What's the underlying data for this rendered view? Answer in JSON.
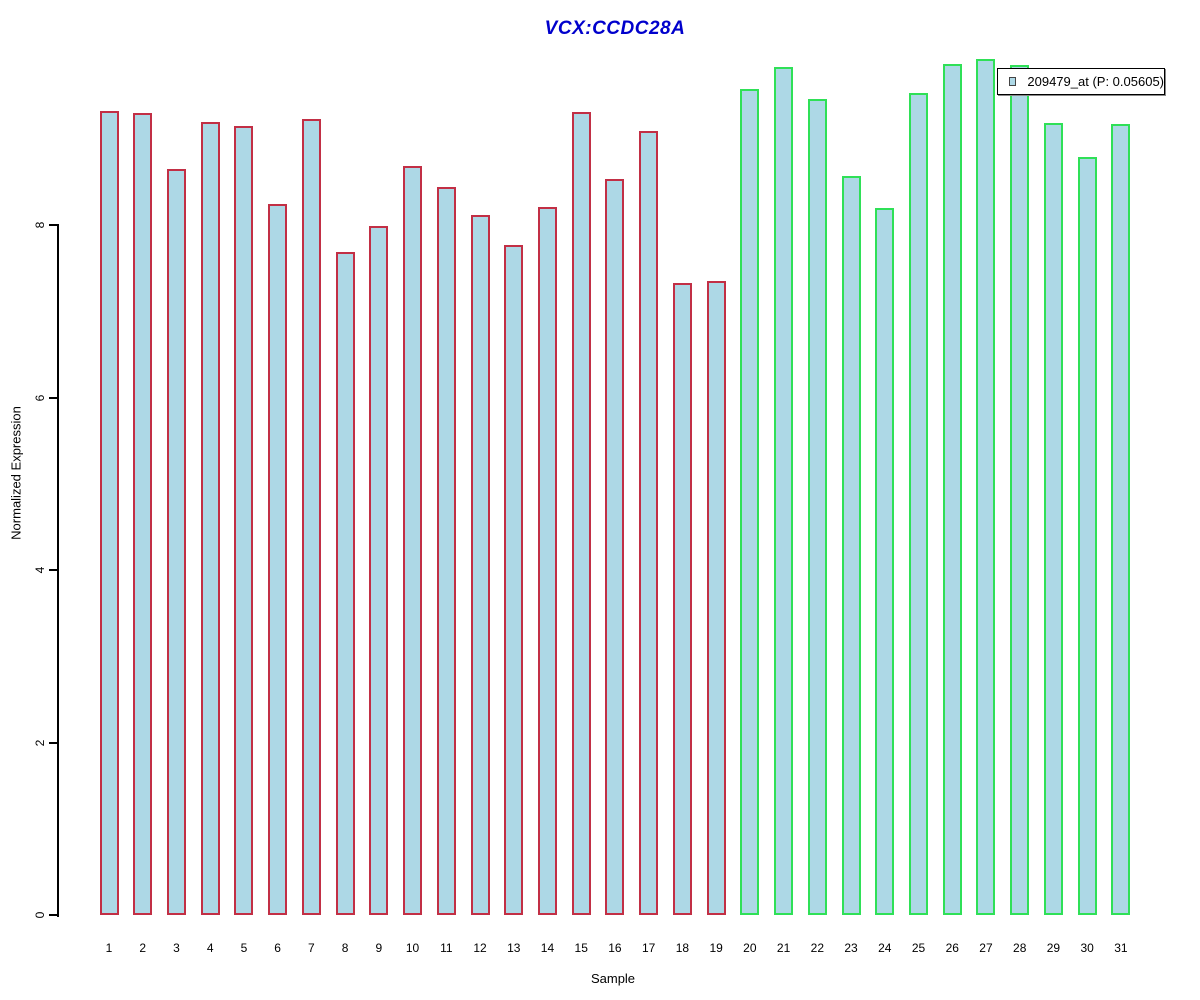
{
  "chart_data": {
    "type": "bar",
    "title": "VCX:CCDC28A",
    "xlabel": "Sample",
    "ylabel": "Normalized Expression",
    "ylim": [
      0,
      10
    ],
    "yticks": [
      0,
      2,
      4,
      6,
      8
    ],
    "grid": false,
    "legend_position": "top-right",
    "categories": [
      "1",
      "2",
      "3",
      "4",
      "5",
      "6",
      "7",
      "8",
      "9",
      "10",
      "11",
      "12",
      "13",
      "14",
      "15",
      "16",
      "17",
      "18",
      "19",
      "20",
      "21",
      "22",
      "23",
      "24",
      "25",
      "26",
      "27",
      "28",
      "29",
      "30",
      "31"
    ],
    "series": [
      {
        "name": "209479_at (P: 0.05605)",
        "values": [
          9.32,
          9.3,
          8.65,
          9.19,
          9.15,
          8.24,
          9.23,
          7.69,
          7.99,
          8.68,
          8.44,
          8.12,
          7.77,
          8.21,
          9.31,
          8.53,
          9.09,
          7.33,
          7.35,
          9.58,
          9.83,
          9.46,
          8.57,
          8.2,
          9.53,
          9.87,
          9.92,
          9.86,
          9.18,
          8.79,
          9.17
        ]
      }
    ],
    "bar_groups": [
      "class1",
      "class1",
      "class1",
      "class1",
      "class1",
      "class1",
      "class1",
      "class1",
      "class1",
      "class1",
      "class1",
      "class1",
      "class1",
      "class1",
      "class1",
      "class1",
      "class1",
      "class1",
      "class1",
      "class2",
      "class2",
      "class2",
      "class2",
      "class2",
      "class2",
      "class2",
      "class2",
      "class2",
      "class2",
      "class2",
      "class2"
    ]
  },
  "legend": {
    "label": "209479_at (P: 0.05605)"
  },
  "colors": {
    "title": "#0000CC",
    "bar_fill": "#ADD8E6",
    "class1_border": "#C22F45",
    "class2_border": "#2FE057",
    "axis": "#000000"
  }
}
